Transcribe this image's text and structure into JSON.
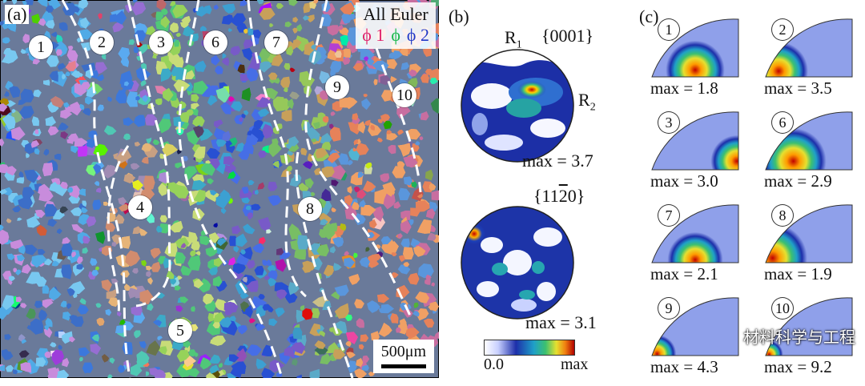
{
  "figure": {
    "panel_a": {
      "label": "(a)",
      "legend_title": "All Euler",
      "legend_angles": [
        {
          "text": "ϕ 1",
          "color": "#e0206a"
        },
        {
          "text": "ϕ",
          "color": "#1ab84a"
        },
        {
          "text": "ϕ 2",
          "color": "#2038c8"
        }
      ],
      "regions": [
        "1",
        "2",
        "3",
        "4",
        "5",
        "6",
        "7",
        "8",
        "9",
        "10"
      ],
      "scale_bar": "500μm"
    },
    "panel_b": {
      "label": "(b)",
      "pf1_label": "{0001}",
      "axis_r1": "R",
      "axis_r1_sub": "1",
      "axis_r2": "R",
      "axis_r2_sub": "2",
      "pf1_max": "max = 3.7",
      "pf2_label_pre": "{11",
      "pf2_label_bar": "2",
      "pf2_label_post": "0}",
      "pf2_max": "max = 3.1",
      "colorbar_min": "0.0",
      "colorbar_max": "max"
    },
    "panel_c": {
      "label": "(c)",
      "ipfs": [
        {
          "id": "1",
          "max": "max = 1.8"
        },
        {
          "id": "2",
          "max": "max = 3.5"
        },
        {
          "id": "3",
          "max": "max = 3.0"
        },
        {
          "id": "6",
          "max": "max = 2.9"
        },
        {
          "id": "7",
          "max": "max = 2.1"
        },
        {
          "id": "8",
          "max": "max = 1.9"
        },
        {
          "id": "9",
          "max": "max = 4.3"
        },
        {
          "id": "10",
          "max": "max = 9.2"
        }
      ]
    },
    "watermark": "材料科学与工程"
  }
}
